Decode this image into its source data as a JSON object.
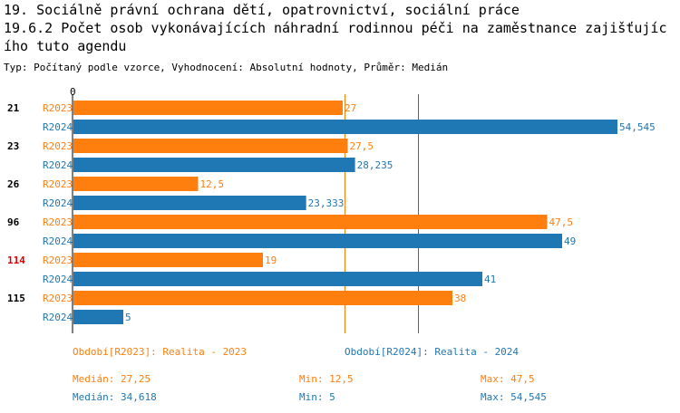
{
  "header": {
    "line1": "19. Sociálně právní ochrana dětí, opatrovnictví, sociální práce",
    "line2": "19.6.2 Počet osob vykonávajících náhradní rodinnou péči na zaměstnance zajišťujíc",
    "line3": "ího tuto agendu",
    "subtitle": "Typ: Počítaný podle vzorce, Vyhodnocení: Absolutní hodnoty, Průměr: Medián"
  },
  "colors": {
    "r2023": "#ff7f0e",
    "r2024": "#1f77b4",
    "highlight": "#dd0000",
    "axis": "#000000"
  },
  "chart_data": {
    "type": "bar",
    "orientation": "horizontal",
    "x_zero_label": "0",
    "xlim": [
      0,
      56
    ],
    "groups": [
      {
        "label": "21",
        "highlight": false
      },
      {
        "label": "23",
        "highlight": false
      },
      {
        "label": "26",
        "highlight": false
      },
      {
        "label": "96",
        "highlight": false
      },
      {
        "label": "114",
        "highlight": true
      },
      {
        "label": "115",
        "highlight": false
      }
    ],
    "series": [
      {
        "name": "R2023",
        "values": [
          27,
          27.5,
          12.5,
          47.5,
          19,
          38
        ],
        "labels": [
          "27",
          "27,5",
          "12,5",
          "47,5",
          "19",
          "38"
        ],
        "median": 27.25
      },
      {
        "name": "R2024",
        "values": [
          54.545,
          28.235,
          23.333,
          49,
          41,
          5
        ],
        "labels": [
          "54,545",
          "28,235",
          "23,333",
          "49",
          "41",
          "5"
        ],
        "median": 34.618
      }
    ]
  },
  "legend": {
    "r2023": "Období[R2023]: Realita - 2023",
    "r2024": "Období[R2024]: Realita - 2024"
  },
  "stats": {
    "r2023": {
      "median": "Medián: 27,25",
      "min": "Min: 12,5",
      "max": "Max: 47,5"
    },
    "r2024": {
      "median": "Medián: 34,618",
      "min": "Min: 5",
      "max": "Max: 54,545"
    }
  }
}
